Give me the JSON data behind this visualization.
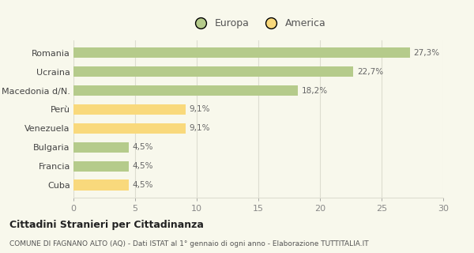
{
  "categories": [
    "Cuba",
    "Francia",
    "Bulgaria",
    "Venezuela",
    "Perù",
    "Macedonia d/N.",
    "Ucraina",
    "Romania"
  ],
  "values": [
    4.5,
    4.5,
    4.5,
    9.1,
    9.1,
    18.2,
    22.7,
    27.3
  ],
  "labels": [
    "4,5%",
    "4,5%",
    "4,5%",
    "9,1%",
    "9,1%",
    "18,2%",
    "22,7%",
    "27,3%"
  ],
  "colors": [
    "#f9d97c",
    "#b5cb8b",
    "#b5cb8b",
    "#f9d97c",
    "#f9d97c",
    "#b5cb8b",
    "#b5cb8b",
    "#b5cb8b"
  ],
  "legend_labels": [
    "Europa",
    "America"
  ],
  "legend_colors": [
    "#b5cb8b",
    "#f9d97c"
  ],
  "title": "Cittadini Stranieri per Cittadinanza",
  "subtitle": "COMUNE DI FAGNANO ALTO (AQ) - Dati ISTAT al 1° gennaio di ogni anno - Elaborazione TUTTITALIA.IT",
  "xlim": [
    0,
    30
  ],
  "xticks": [
    0,
    5,
    10,
    15,
    20,
    25,
    30
  ],
  "background_color": "#f8f8ec",
  "grid_color": "#ddddd0"
}
